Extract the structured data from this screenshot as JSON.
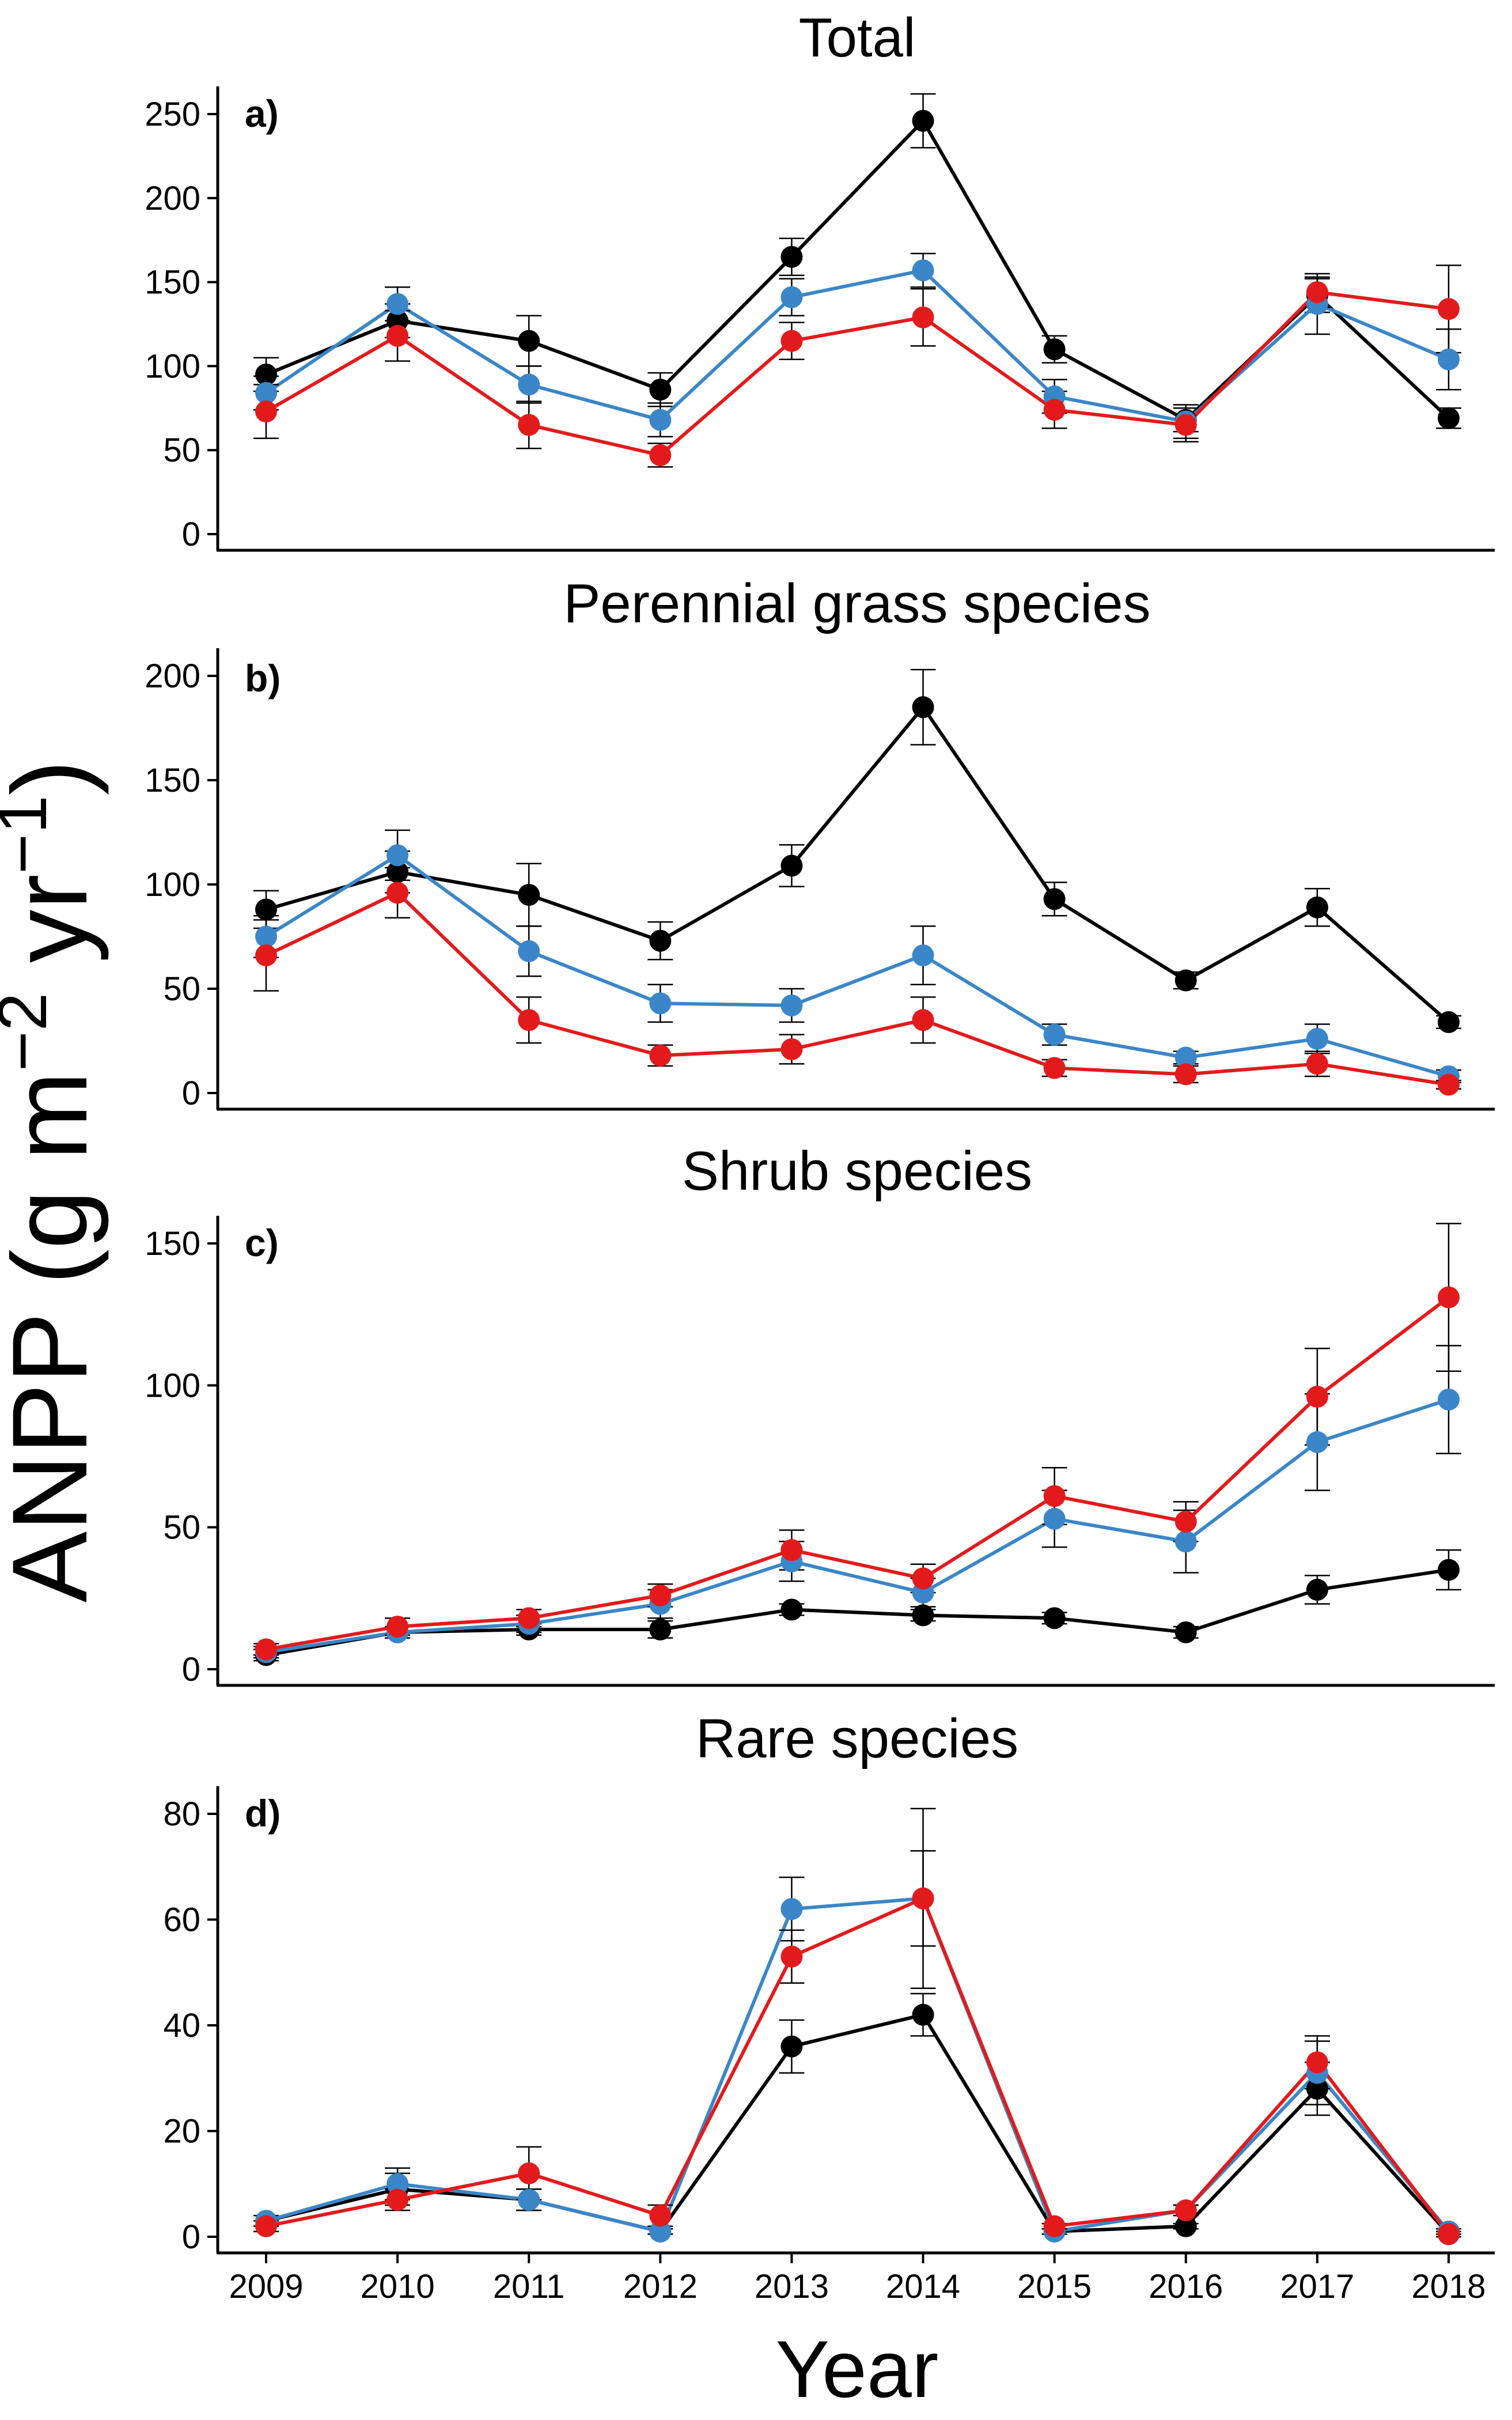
{
  "figure": {
    "ylabel_main": "ANPP (g m",
    "ylabel_sup1": "−2",
    "ylabel_mid": " yr",
    "ylabel_sup2": "−1",
    "ylabel_end": ")",
    "xlabel": "Year",
    "colors": {
      "black": "#000000",
      "blue": "#3a86c8",
      "red": "#e31a1c"
    }
  },
  "chart_data": [
    {
      "type": "line",
      "title": "Total",
      "panel_label": "a)",
      "categories": [
        "2009",
        "2010",
        "2011",
        "2012",
        "2013",
        "2014",
        "2015",
        "2016",
        "2017",
        "2018"
      ],
      "ylim": [
        0,
        250
      ],
      "yticks": [
        0,
        50,
        100,
        150,
        200,
        250
      ],
      "grid": false,
      "show_xticks": false,
      "series": [
        {
          "color": "#000000",
          "values": [
            95,
            127,
            115,
            86,
            165,
            246,
            110,
            68,
            142,
            69
          ],
          "errors": [
            10,
            10,
            15,
            10,
            11,
            16,
            8,
            7,
            10,
            6
          ]
        },
        {
          "color": "#3a86c8",
          "values": [
            84,
            137,
            89,
            68,
            141,
            157,
            82,
            67,
            137,
            104
          ],
          "errors": [
            10,
            10,
            11,
            10,
            11,
            10,
            10,
            10,
            18,
            18
          ]
        },
        {
          "color": "#e31a1c",
          "values": [
            73,
            118,
            65,
            47,
            115,
            129,
            74,
            65,
            144,
            134
          ],
          "errors": [
            16,
            15,
            14,
            7,
            11,
            17,
            11,
            10,
            9,
            26
          ]
        }
      ]
    },
    {
      "type": "line",
      "title": "Perennial grass species",
      "panel_label": "b)",
      "categories": [
        "2009",
        "2010",
        "2011",
        "2012",
        "2013",
        "2014",
        "2015",
        "2016",
        "2017",
        "2018"
      ],
      "ylim": [
        0,
        200
      ],
      "yticks": [
        0,
        50,
        100,
        150,
        200
      ],
      "grid": false,
      "show_xticks": false,
      "series": [
        {
          "color": "#000000",
          "values": [
            88,
            106,
            95,
            73,
            109,
            185,
            93,
            54,
            89,
            34
          ],
          "errors": [
            9,
            10,
            15,
            9,
            10,
            18,
            8,
            4,
            9,
            3
          ]
        },
        {
          "color": "#3a86c8",
          "values": [
            75,
            114,
            68,
            43,
            42,
            66,
            28,
            17,
            26,
            8
          ],
          "errors": [
            10,
            12,
            12,
            9,
            8,
            14,
            5,
            3,
            7,
            3
          ]
        },
        {
          "color": "#e31a1c",
          "values": [
            66,
            96,
            35,
            18,
            21,
            35,
            12,
            9,
            14,
            4
          ],
          "errors": [
            17,
            12,
            11,
            5,
            7,
            11,
            4,
            4,
            6,
            2
          ]
        }
      ]
    },
    {
      "type": "line",
      "title": "Shrub species",
      "panel_label": "c)",
      "categories": [
        "2009",
        "2010",
        "2011",
        "2012",
        "2013",
        "2014",
        "2015",
        "2016",
        "2017",
        "2018"
      ],
      "ylim": [
        0,
        165
      ],
      "yticks": [
        0,
        50,
        100,
        150
      ],
      "grid": false,
      "show_xticks": false,
      "series": [
        {
          "color": "#000000",
          "values": [
            5,
            13,
            14,
            14,
            21,
            19,
            18,
            13,
            28,
            35
          ],
          "errors": [
            2,
            2,
            2,
            3,
            2,
            2,
            2,
            2,
            5,
            7
          ]
        },
        {
          "color": "#3a86c8",
          "values": [
            6,
            13,
            16,
            23,
            38,
            27,
            53,
            45,
            80,
            95
          ],
          "errors": [
            2,
            2,
            3,
            5,
            7,
            5,
            10,
            11,
            17,
            19
          ]
        },
        {
          "color": "#e31a1c",
          "values": [
            7,
            15,
            18,
            26,
            42,
            32,
            61,
            52,
            96,
            131
          ],
          "errors": [
            2,
            3,
            3,
            4,
            7,
            5,
            10,
            7,
            17,
            26
          ]
        }
      ]
    },
    {
      "type": "line",
      "title": "Rare species",
      "panel_label": "d)",
      "categories": [
        "2009",
        "2010",
        "2011",
        "2012",
        "2013",
        "2014",
        "2015",
        "2016",
        "2017",
        "2018"
      ],
      "ylim": [
        0,
        80
      ],
      "yticks": [
        0,
        20,
        40,
        60,
        80
      ],
      "grid": false,
      "show_xticks": true,
      "series": [
        {
          "color": "#000000",
          "values": [
            3,
            9,
            7,
            1,
            36,
            42,
            1,
            2,
            28,
            0.5
          ],
          "errors": [
            1,
            3,
            2,
            0.5,
            5,
            4,
            0.5,
            0.5,
            5,
            0.5
          ]
        },
        {
          "color": "#3a86c8",
          "values": [
            3,
            10,
            7,
            1,
            62,
            64,
            1,
            5,
            31,
            1
          ],
          "errors": [
            1,
            3,
            2,
            0.5,
            6,
            17,
            0.5,
            1,
            6,
            0.5
          ]
        },
        {
          "color": "#e31a1c",
          "values": [
            2,
            7,
            12,
            4,
            53,
            64,
            2,
            5,
            33,
            0.5
          ],
          "errors": [
            1,
            2,
            5,
            2,
            5,
            9,
            0.5,
            1,
            5,
            0.5
          ]
        }
      ]
    }
  ]
}
